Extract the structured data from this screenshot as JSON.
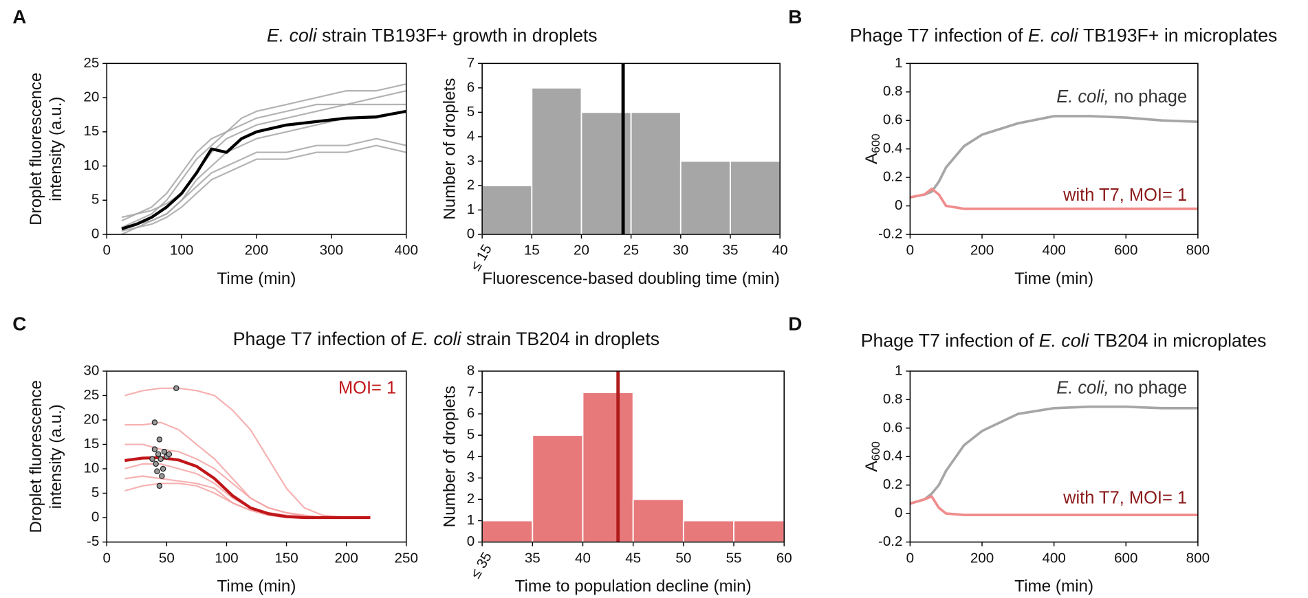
{
  "chart_data": [
    {
      "type": "line",
      "panel": "A",
      "title": [
        {
          "text": "E. coli",
          "italic": true
        },
        {
          "text": "strain TB193F+ growth in droplets"
        }
      ],
      "xlabel": "Time (min)",
      "ylabel": [
        "Droplet fluorescence",
        "intensity (a.u.)"
      ],
      "x": [
        20,
        40,
        60,
        80,
        100,
        120,
        140,
        160,
        180,
        200,
        240,
        280,
        320,
        360,
        400
      ],
      "series": [
        {
          "color": "#a6a6a6",
          "values": [
            2,
            3,
            4,
            6,
            9,
            12,
            14,
            15,
            17,
            18,
            19,
            20,
            21,
            21,
            22
          ]
        },
        {
          "color": "#a6a6a6",
          "values": [
            1,
            2,
            3,
            5,
            8,
            11,
            13,
            15,
            16,
            17,
            18,
            19,
            19,
            20,
            21
          ]
        },
        {
          "color": "#a6a6a6",
          "values": [
            0.5,
            1,
            2,
            3,
            5,
            8,
            10,
            12,
            13,
            14,
            15,
            16,
            17,
            17,
            18
          ]
        },
        {
          "color": "#a6a6a6",
          "values": [
            1,
            1.5,
            2,
            3,
            5,
            7,
            9,
            10,
            11,
            12,
            12,
            13,
            13,
            14,
            13
          ]
        },
        {
          "color": "#a6a6a6",
          "values": [
            0,
            1,
            1.5,
            2.5,
            4,
            6,
            8,
            9,
            10,
            11,
            11,
            12,
            12,
            13,
            12
          ]
        },
        {
          "color": "#a6a6a6",
          "values": [
            2.5,
            3,
            3.5,
            4.5,
            6,
            9,
            12,
            14,
            15,
            16,
            17,
            18,
            19,
            19,
            19
          ]
        },
        {
          "color": "#000000",
          "values": [
            0.8,
            1.5,
            2.5,
            4,
            6,
            9,
            12.5,
            12,
            14,
            15,
            16,
            16.5,
            17,
            17.2,
            18
          ]
        }
      ],
      "xlim": [
        0,
        400
      ],
      "xticks": [
        0,
        100,
        200,
        300,
        400
      ],
      "ylim": [
        0,
        25
      ],
      "yticks": [
        0,
        5,
        10,
        15,
        20,
        25
      ]
    },
    {
      "type": "histogram",
      "xlabel": "Fluorescence-based doubling time (min)",
      "ylabel": [
        "Number of droplets"
      ],
      "bins": [
        10,
        15,
        20,
        25,
        30,
        35,
        40
      ],
      "counts": [
        2,
        6,
        5,
        5,
        3,
        3
      ],
      "color": "#a6a6a6",
      "vline": 24.2,
      "vline_color": "#000000",
      "xlim": [
        10,
        40
      ],
      "xticks": [
        {
          "value": 10,
          "label": "≤ 15"
        },
        15,
        20,
        25,
        30,
        35,
        40
      ],
      "ylim": [
        0,
        7
      ],
      "yticks": [
        0,
        1,
        2,
        3,
        4,
        5,
        6,
        7
      ]
    },
    {
      "type": "line",
      "panel": "B",
      "title": [
        {
          "text": "Phage T7 infection of"
        },
        {
          "text": "E. coli",
          "italic": true
        },
        {
          "text": "TB193F+ in microplates"
        }
      ],
      "xlabel": "Time (min)",
      "ylabel": [
        {
          "text": "A",
          "sub": "600"
        }
      ],
      "x": [
        0,
        40,
        60,
        80,
        100,
        150,
        200,
        300,
        400,
        500,
        600,
        700,
        800
      ],
      "series": [
        {
          "color": "#a6a6a6",
          "values": [
            0.06,
            0.08,
            0.1,
            0.17,
            0.27,
            0.42,
            0.5,
            0.58,
            0.63,
            0.63,
            0.62,
            0.6,
            0.59
          ]
        },
        {
          "color": "#f08c8c",
          "values": [
            0.06,
            0.08,
            0.12,
            0.08,
            0.0,
            -0.02,
            -0.02,
            -0.02,
            -0.02,
            -0.02,
            -0.02,
            -0.02,
            -0.02
          ]
        }
      ],
      "annotations": [
        {
          "color": "#333333",
          "parts": [
            {
              "text": "E. coli,",
              "italic": true
            },
            {
              "text": "no phage"
            }
          ]
        },
        {
          "color": "#8b1a1a",
          "parts": [
            {
              "text": "with T7, MOI= 1"
            }
          ]
        }
      ],
      "xlim": [
        0,
        800
      ],
      "xticks": [
        0,
        200,
        400,
        600,
        800
      ],
      "ylim": [
        -0.2,
        1
      ],
      "yticks": [
        -0.2,
        0,
        0.2,
        0.4,
        0.6,
        0.8,
        1
      ]
    },
    {
      "type": "line",
      "panel": "C",
      "title": [
        {
          "text": "Phage T7 infection of"
        },
        {
          "text": "E. coli",
          "italic": true
        },
        {
          "text": "strain TB204 in droplets"
        }
      ],
      "xlabel": "Time (min)",
      "ylabel": [
        "Droplet fluorescence",
        "intensity (a.u.)"
      ],
      "x": [
        15,
        30,
        45,
        60,
        75,
        90,
        105,
        120,
        135,
        150,
        165,
        180,
        200,
        220
      ],
      "series": [
        {
          "color": "#f4a3a3",
          "values": [
            25,
            26,
            26.5,
            26.5,
            26,
            25,
            22,
            18,
            12,
            6,
            2,
            0.5,
            0,
            0
          ]
        },
        {
          "color": "#f4a3a3",
          "values": [
            19,
            19,
            19.5,
            18,
            15,
            12,
            8,
            4,
            2,
            1,
            0.5,
            0,
            0,
            0
          ]
        },
        {
          "color": "#f4a3a3",
          "values": [
            15,
            15,
            14,
            13.5,
            12,
            10,
            7,
            4,
            2,
            1,
            0.3,
            0,
            0,
            0
          ]
        },
        {
          "color": "#f4a3a3",
          "values": [
            10,
            11,
            11,
            10,
            9,
            7,
            4,
            2,
            1,
            0.5,
            0.2,
            0,
            0,
            0
          ]
        },
        {
          "color": "#f4a3a3",
          "values": [
            8,
            8.5,
            8,
            7.5,
            7,
            6,
            3,
            1.5,
            0.5,
            0.2,
            0,
            0,
            0,
            0
          ]
        },
        {
          "color": "#f4a3a3",
          "values": [
            5.5,
            6.5,
            7,
            7,
            6.5,
            5,
            3,
            1.5,
            0.5,
            0,
            0,
            0,
            0,
            0
          ]
        },
        {
          "color": "#c0161a",
          "values": [
            11.7,
            12.2,
            12.3,
            11.8,
            10.5,
            8,
            4.5,
            2,
            0.8,
            0.2,
            0,
            0,
            0,
            0
          ]
        }
      ],
      "points": {
        "color": "#999999",
        "x": [
          38,
          40,
          41,
          42,
          43,
          44,
          45,
          46,
          47,
          48,
          50,
          52,
          58,
          40,
          44
        ],
        "y": [
          12,
          14,
          11,
          9.5,
          13,
          16,
          12,
          8.5,
          10,
          13.5,
          12.5,
          13,
          26.5,
          19.5,
          6.5
        ]
      },
      "annotations": [
        {
          "color": "#c0161a",
          "parts": [
            {
              "text": "MOI= 1"
            }
          ]
        }
      ],
      "xlim": [
        0,
        250
      ],
      "xticks": [
        0,
        50,
        100,
        150,
        200,
        250
      ],
      "ylim": [
        -5,
        30
      ],
      "yticks": [
        -5,
        0,
        5,
        10,
        15,
        20,
        25,
        30
      ]
    },
    {
      "type": "histogram",
      "xlabel": "Time to population decline (min)",
      "ylabel": [
        "Number of droplets"
      ],
      "bins": [
        30,
        35,
        40,
        45,
        50,
        55,
        60
      ],
      "counts": [
        1,
        5,
        7,
        2,
        1,
        1
      ],
      "color": "#e8797b",
      "vline": 43.5,
      "vline_color": "#b01c1c",
      "xlim": [
        30,
        60
      ],
      "xticks": [
        {
          "value": 30,
          "label": "≤ 35"
        },
        35,
        40,
        45,
        50,
        55,
        60
      ],
      "ylim": [
        0,
        8
      ],
      "yticks": [
        0,
        1,
        2,
        3,
        4,
        5,
        6,
        7,
        8
      ]
    },
    {
      "type": "line",
      "panel": "D",
      "title": [
        {
          "text": "Phage T7 infection of"
        },
        {
          "text": "E. coli",
          "italic": true
        },
        {
          "text": "TB204 in microplates"
        }
      ],
      "xlabel": "Time (min)",
      "ylabel": [
        {
          "text": "A",
          "sub": "600"
        }
      ],
      "x": [
        0,
        40,
        60,
        80,
        100,
        150,
        200,
        300,
        400,
        500,
        600,
        700,
        800
      ],
      "series": [
        {
          "color": "#a6a6a6",
          "values": [
            0.07,
            0.1,
            0.14,
            0.2,
            0.3,
            0.48,
            0.58,
            0.7,
            0.74,
            0.75,
            0.75,
            0.74,
            0.74
          ]
        },
        {
          "color": "#f08c8c",
          "values": [
            0.07,
            0.1,
            0.12,
            0.04,
            0.0,
            -0.01,
            -0.01,
            -0.01,
            -0.01,
            -0.01,
            -0.01,
            -0.01,
            -0.01
          ]
        }
      ],
      "annotations": [
        {
          "color": "#333333",
          "parts": [
            {
              "text": "E. coli,",
              "italic": true
            },
            {
              "text": "no phage"
            }
          ]
        },
        {
          "color": "#8b1a1a",
          "parts": [
            {
              "text": "with T7, MOI= 1"
            }
          ]
        }
      ],
      "xlim": [
        0,
        800
      ],
      "xticks": [
        0,
        200,
        400,
        600,
        800
      ],
      "ylim": [
        -0.2,
        1
      ],
      "yticks": [
        -0.2,
        0,
        0.2,
        0.4,
        0.6,
        0.8,
        1
      ]
    }
  ]
}
